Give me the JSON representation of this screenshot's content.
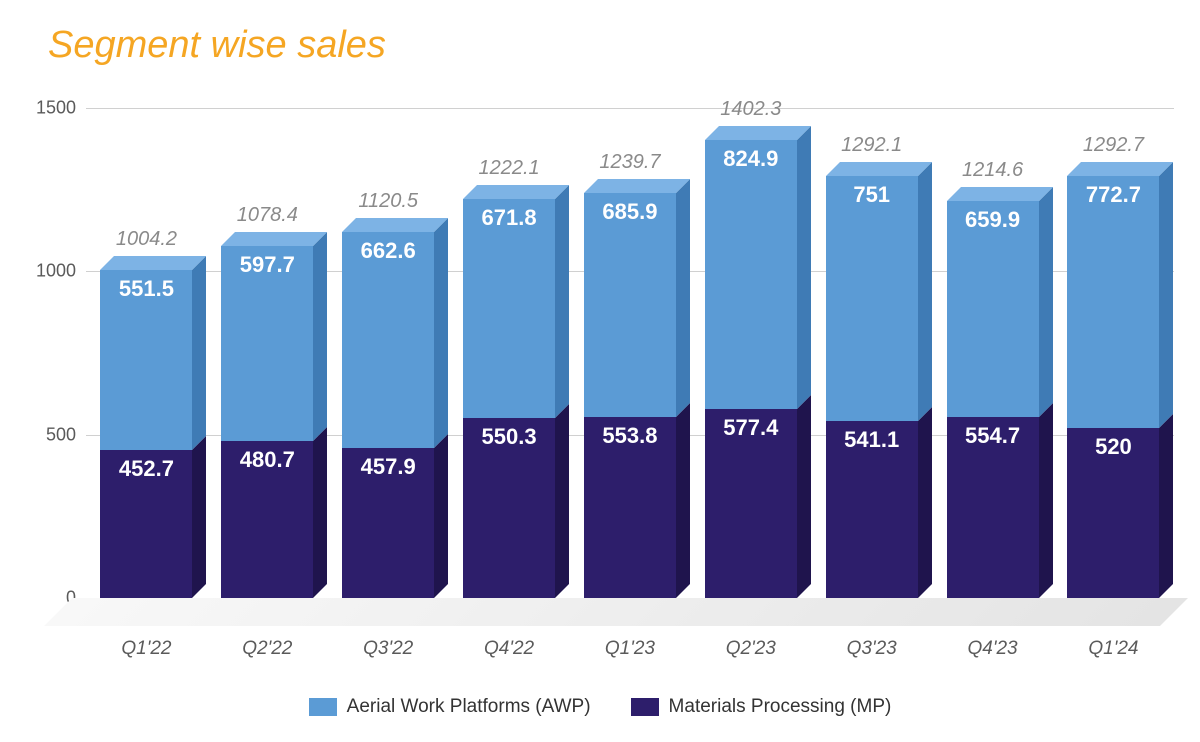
{
  "title": "Segment wise sales",
  "title_color": "#f5a623",
  "title_fontsize": 38,
  "chart": {
    "type": "stacked-bar-3d",
    "background_color": "#ffffff",
    "grid_color": "#d0d0d0",
    "floor_color": "#efefef",
    "axis_label_color": "#5a5a5a",
    "total_label_color": "#8a8a8a",
    "value_label_color": "#ffffff",
    "value_label_fontsize": 22,
    "total_label_fontsize": 20,
    "xlabel_fontsize": 19,
    "ylim": [
      0,
      1500
    ],
    "ytick_step": 500,
    "categories": [
      "Q1'22",
      "Q2'22",
      "Q3'22",
      "Q4'22",
      "Q1'23",
      "Q2'23",
      "Q3'23",
      "Q4'23",
      "Q1'24"
    ],
    "totals": [
      1004.2,
      1078.4,
      1120.5,
      1222.1,
      1239.7,
      1402.3,
      1292.1,
      1214.6,
      1292.7
    ],
    "series": [
      {
        "name": "Materials Processing (MP)",
        "front_color": "#2d1e6b",
        "side_color": "#1f144d",
        "top_color": "#3b2a88",
        "values": [
          452.7,
          480.7,
          457.9,
          550.3,
          553.8,
          577.4,
          541.1,
          554.7,
          520
        ]
      },
      {
        "name": "Aerial Work Platforms (AWP)",
        "front_color": "#5b9bd5",
        "side_color": "#3f7bb5",
        "top_color": "#7db3e5",
        "values": [
          551.5,
          597.7,
          662.6,
          671.8,
          685.9,
          824.9,
          751,
          659.9,
          772.7
        ]
      }
    ],
    "legend_order": [
      "Aerial Work Platforms (AWP)",
      "Materials Processing (MP)"
    ]
  }
}
